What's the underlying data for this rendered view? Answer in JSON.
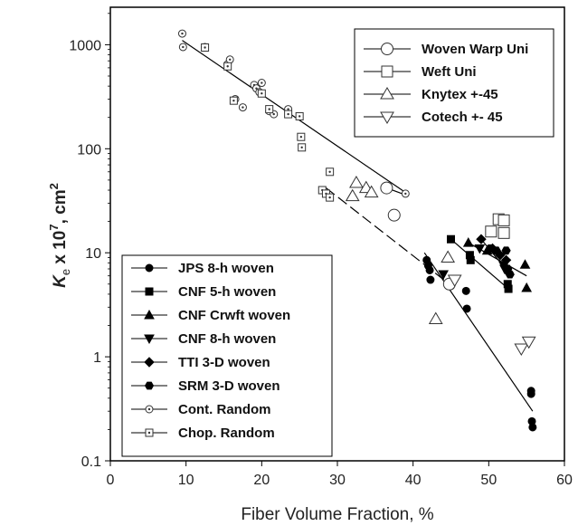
{
  "chart_data": {
    "type": "scatter",
    "xlabel": "Fiber Volume Fraction, %",
    "ylabel": {
      "main": "K",
      "sub": "e",
      "mid": " x 10",
      "sup": "7",
      "tail": ", cm",
      "sup2": "2"
    },
    "xlim": [
      0,
      60
    ],
    "ylim": [
      0.1,
      2000
    ],
    "yscale": "log",
    "x_ticks": [
      "0",
      "10",
      "20",
      "30",
      "40",
      "50",
      "60"
    ],
    "y_ticks": [
      "0.1",
      "1",
      "10",
      "100",
      "1000"
    ],
    "grid": false,
    "legends": {
      "top-right": [
        {
          "name": "Woven Warp Uni",
          "marker": "circle-open-large"
        },
        {
          "name": "Weft Uni",
          "marker": "square-open-large"
        },
        {
          "name": "Knytex +-45",
          "marker": "triangle-up-open"
        },
        {
          "name": "Cotech +- 45",
          "marker": "triangle-down-open"
        }
      ],
      "bottom-left": [
        {
          "name": "JPS 8-h woven",
          "marker": "circle-filled"
        },
        {
          "name": "CNF 5-h woven",
          "marker": "square-filled"
        },
        {
          "name": "CNF Crwft woven",
          "marker": "triangle-up-filled"
        },
        {
          "name": "CNF 8-h woven",
          "marker": "triangle-down-filled"
        },
        {
          "name": "TTI 3-D woven",
          "marker": "diamond-filled"
        },
        {
          "name": "SRM 3-D woven",
          "marker": "hexagon-filled"
        },
        {
          "name": "Cont. Random",
          "marker": "circle-dot"
        },
        {
          "name": "Chop. Random",
          "marker": "square-dot"
        }
      ]
    },
    "series": [
      {
        "name": "Cont. Random",
        "marker": "circle-dot",
        "points": [
          [
            9.5,
            1280
          ],
          [
            9.6,
            950
          ],
          [
            12.5,
            950
          ],
          [
            15.5,
            650
          ],
          [
            15.8,
            720
          ],
          [
            16.5,
            300
          ],
          [
            17.5,
            250
          ],
          [
            19,
            410
          ],
          [
            19.3,
            380
          ],
          [
            19.7,
            350
          ],
          [
            20,
            430
          ],
          [
            21,
            230
          ],
          [
            21.6,
            215
          ],
          [
            23.5,
            240
          ],
          [
            36.5,
            42
          ],
          [
            39,
            37
          ]
        ]
      },
      {
        "name": "Chop. Random",
        "marker": "square-dot",
        "points": [
          [
            12.5,
            940
          ],
          [
            15.5,
            620
          ],
          [
            16.3,
            290
          ],
          [
            20,
            340
          ],
          [
            21,
            240
          ],
          [
            23.5,
            215
          ],
          [
            25,
            205
          ],
          [
            25.2,
            130
          ],
          [
            25.3,
            103
          ],
          [
            28,
            40
          ],
          [
            28.5,
            37
          ],
          [
            29,
            60
          ],
          [
            29,
            34
          ]
        ]
      },
      {
        "name": "JPS 8-h woven",
        "marker": "circle-filled",
        "points": [
          [
            41.8,
            8.5
          ],
          [
            42,
            7.5
          ],
          [
            42.2,
            6.8
          ],
          [
            42.3,
            5.5
          ],
          [
            45,
            4.8
          ],
          [
            47,
            4.3
          ],
          [
            47.1,
            2.9
          ],
          [
            55.6,
            0.47
          ],
          [
            55.6,
            0.44
          ],
          [
            55.7,
            0.24
          ],
          [
            55.8,
            0.21
          ]
        ]
      },
      {
        "name": "CNF 5-h woven",
        "marker": "square-filled",
        "points": [
          [
            45,
            13.5
          ],
          [
            47.5,
            9.5
          ],
          [
            47.6,
            8.5
          ],
          [
            52.5,
            5
          ],
          [
            52.6,
            4.5
          ]
        ]
      },
      {
        "name": "CNF Crwft woven",
        "marker": "triangle-up-filled",
        "points": [
          [
            47.3,
            12.5
          ],
          [
            49.8,
            10.5
          ],
          [
            54.8,
            7.7
          ],
          [
            55,
            4.6
          ]
        ]
      },
      {
        "name": "CNF 8-h woven",
        "marker": "triangle-down-filled",
        "points": [
          [
            44,
            6.2
          ],
          [
            48.8,
            11
          ],
          [
            52,
            7.5
          ],
          [
            52.1,
            7
          ]
        ]
      },
      {
        "name": "TTI 3-D woven",
        "marker": "diamond-filled",
        "points": [
          [
            49,
            13.5
          ],
          [
            50.5,
            11
          ],
          [
            51.5,
            9.5
          ],
          [
            52.3,
            8.5
          ],
          [
            52.6,
            6.5
          ]
        ]
      },
      {
        "name": "SRM 3-D woven",
        "marker": "hexagon-filled",
        "points": [
          [
            50.2,
            11
          ],
          [
            51,
            10.5
          ],
          [
            52.3,
            10.5
          ],
          [
            52.5,
            7
          ],
          [
            52.8,
            6.2
          ]
        ]
      },
      {
        "name": "Woven Warp Uni",
        "marker": "circle-open-large",
        "points": [
          [
            36.5,
            42
          ],
          [
            37.5,
            23
          ],
          [
            44.8,
            5
          ]
        ]
      },
      {
        "name": "Weft Uni",
        "marker": "square-open-large",
        "points": [
          [
            50.3,
            16
          ],
          [
            51.3,
            21
          ],
          [
            52,
            20.5
          ],
          [
            52,
            15.5
          ]
        ]
      },
      {
        "name": "Knytex +-45",
        "marker": "triangle-up-open",
        "points": [
          [
            32,
            35
          ],
          [
            32.5,
            47
          ],
          [
            33.8,
            42
          ],
          [
            34.5,
            38
          ],
          [
            43,
            2.3
          ],
          [
            44.6,
            9
          ]
        ]
      },
      {
        "name": "Cotech +- 45",
        "marker": "triangle-down-open",
        "points": [
          [
            45.5,
            5.5
          ],
          [
            54.3,
            1.2
          ],
          [
            55.3,
            1.4
          ]
        ]
      }
    ],
    "trendlines": [
      {
        "style": "solid",
        "points": [
          [
            9.5,
            1100
          ],
          [
            39,
            38
          ]
        ]
      },
      {
        "style": "dashed",
        "points": [
          [
            28.5,
            42
          ],
          [
            44.8,
            5
          ]
        ]
      },
      {
        "style": "solid",
        "points": [
          [
            36.5,
            42
          ],
          [
            39,
            36
          ]
        ]
      },
      {
        "style": "solid",
        "points": [
          [
            41.5,
            10
          ],
          [
            55.8,
            0.3
          ]
        ]
      },
      {
        "style": "solid",
        "points": [
          [
            45,
            13.5
          ],
          [
            52.6,
            4.5
          ]
        ]
      },
      {
        "style": "solid",
        "points": [
          [
            47.3,
            12.5
          ],
          [
            55,
            6
          ]
        ]
      },
      {
        "style": "solid",
        "points": [
          [
            49,
            13.5
          ],
          [
            52.6,
            6.5
          ]
        ]
      }
    ]
  }
}
